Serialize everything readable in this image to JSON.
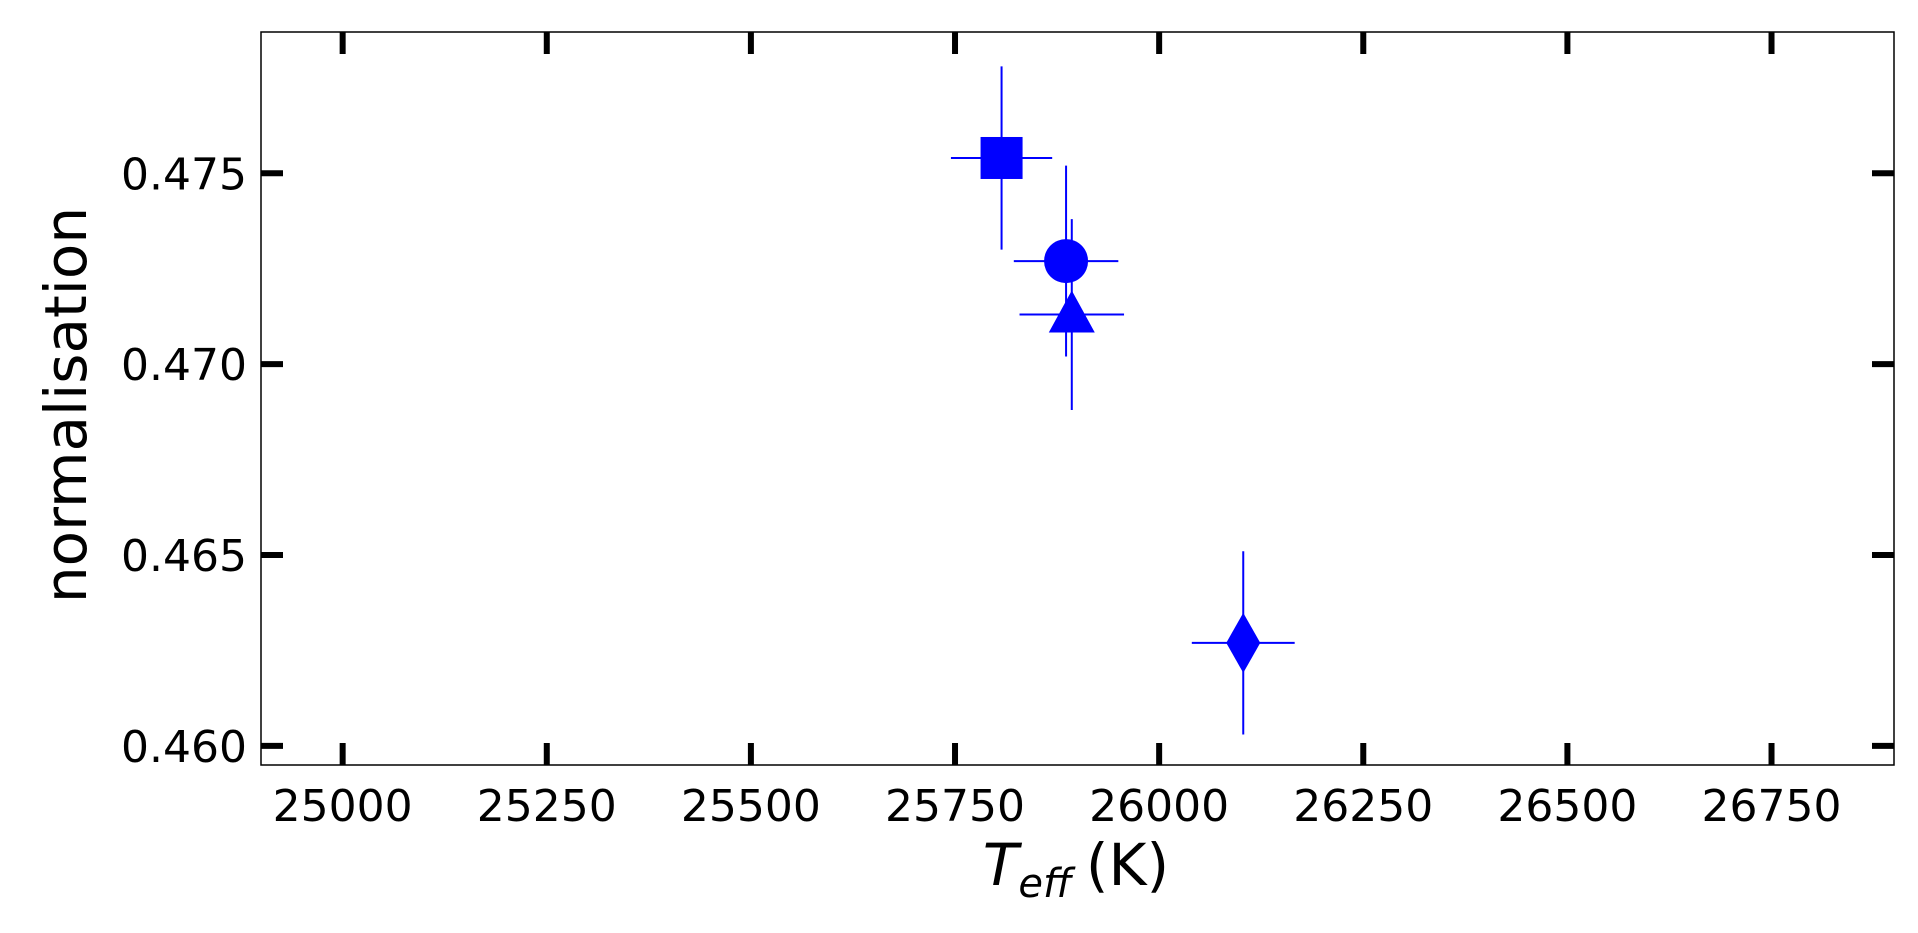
{
  "chart_data": {
    "type": "scatter",
    "xlabel": {
      "main": "T",
      "sub": "eff",
      "unit": "(K)"
    },
    "ylabel": "normalisation",
    "xlim": [
      24900,
      26900
    ],
    "ylim": [
      0.4595,
      0.4787
    ],
    "xticks": [
      25000,
      25250,
      25500,
      25750,
      26000,
      26250,
      26500,
      26750
    ],
    "xtick_labels": [
      "25000",
      "25250",
      "25500",
      "25750",
      "26000",
      "26250",
      "26500",
      "26750"
    ],
    "yticks": [
      0.46,
      0.465,
      0.47,
      0.475
    ],
    "ytick_labels": [
      "0.460",
      "0.465",
      "0.470",
      "0.475"
    ],
    "grid": false,
    "points": [
      {
        "marker": "square",
        "x": 25807,
        "y": 0.4754,
        "xerr": 62,
        "yerr": 0.0024
      },
      {
        "marker": "circle",
        "x": 25886,
        "y": 0.4727,
        "xerr": 64,
        "yerr": 0.0025
      },
      {
        "marker": "triangle",
        "x": 25893,
        "y": 0.4713,
        "xerr": 64,
        "yerr": 0.0025
      },
      {
        "marker": "diamond",
        "x": 26103,
        "y": 0.4627,
        "xerr": 63,
        "yerr": 0.0024
      }
    ],
    "color": "#0000ff"
  }
}
